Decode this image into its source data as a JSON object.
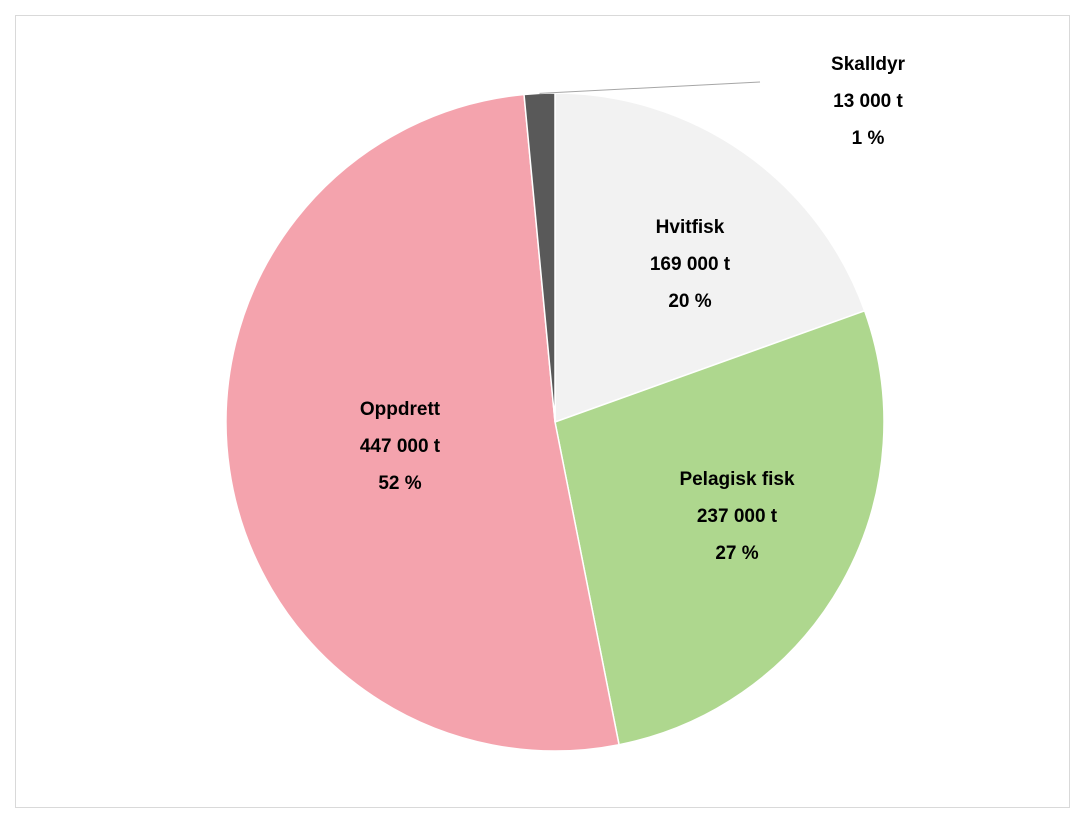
{
  "chart_data": {
    "type": "pie",
    "categories": [
      "Hvitfisk",
      "Pelagisk fisk",
      "Oppdrett",
      "Skalldyr"
    ],
    "values": [
      169000,
      237000,
      447000,
      13000
    ],
    "value_labels": [
      "169 000  t",
      "237 000  t",
      "447 000  t",
      "13 000  t"
    ],
    "percent_labels": [
      "20 %",
      "27 %",
      "52 %",
      "1 %"
    ],
    "colors": [
      "#f2f2f2",
      "#aed78e",
      "#f4a3ad",
      "#595959"
    ]
  }
}
